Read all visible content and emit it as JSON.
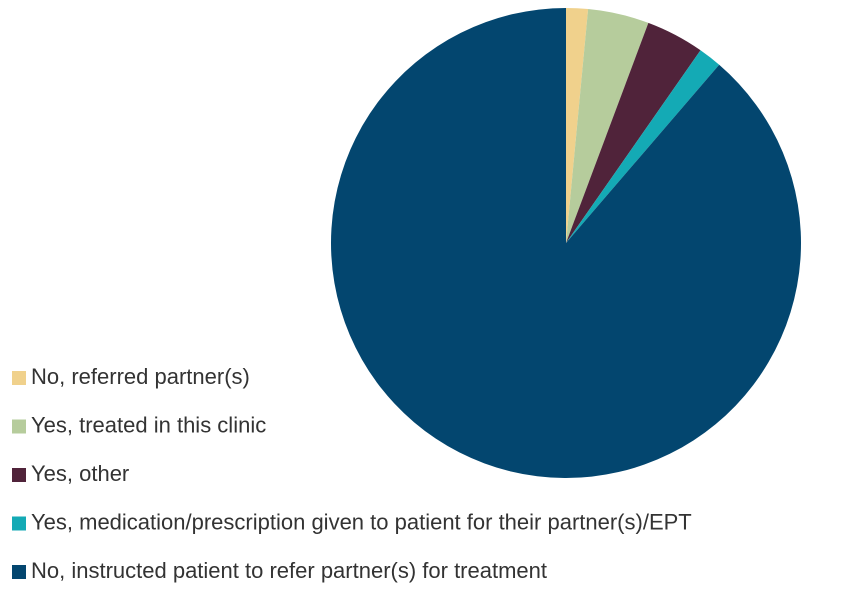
{
  "chart_data": {
    "type": "pie",
    "categories": [
      "No, referred partner(s)",
      "Yes, treated in this clinic",
      "Yes, other",
      "Yes, medication/prescription given to patient for their partner(s)/EPT",
      "No, instructed patient to refer partner(s) for treatment"
    ],
    "values": [
      1.5,
      4.2,
      4.0,
      1.6,
      88.7
    ],
    "colors": [
      "#f0d18c",
      "#b6cc9c",
      "#50233a",
      "#14aab5",
      "#03466f"
    ],
    "legend": "bottom-left"
  }
}
